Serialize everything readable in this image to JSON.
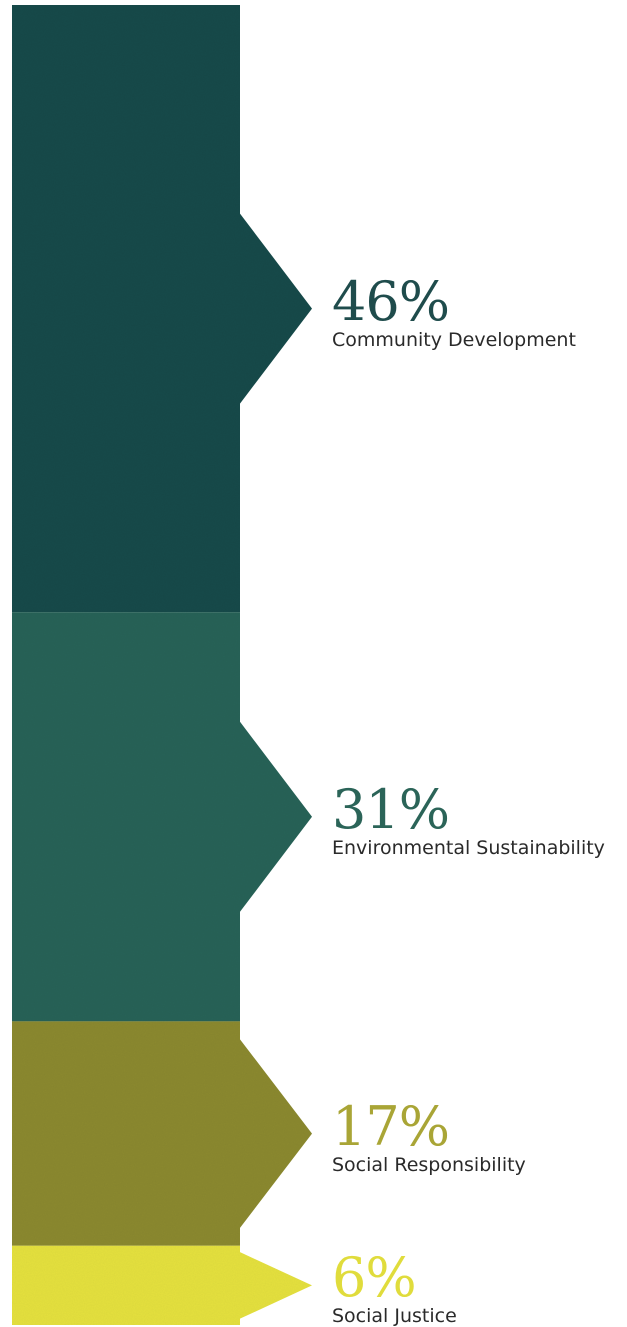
{
  "chart_data": {
    "type": "bar",
    "orientation": "stacked-vertical",
    "categories": [
      "Community Development",
      "Environmental Sustainability",
      "Social Responsibility",
      "Social Justice"
    ],
    "values": [
      46,
      31,
      17,
      6
    ],
    "value_labels": [
      "46%",
      "31%",
      "17%",
      "6%"
    ],
    "unit": "%",
    "colors": [
      "#1f4c4c",
      "#2b6458",
      "#8c8a30",
      "#e6e23f"
    ],
    "label_colors": [
      "#1f4c4c",
      "#2b6458",
      "#a9a536",
      "#e0dc3c"
    ]
  }
}
